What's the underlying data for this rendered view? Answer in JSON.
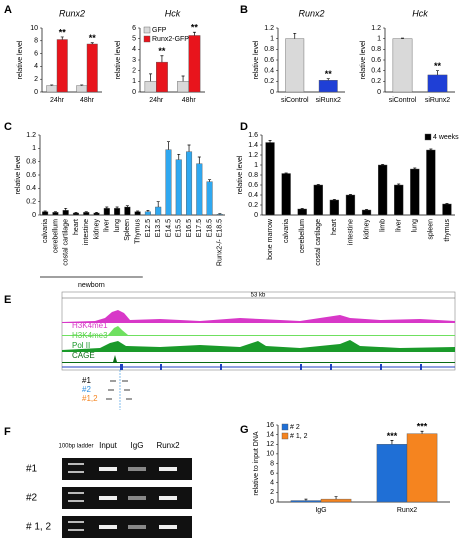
{
  "panel_labels": [
    "A",
    "B",
    "C",
    "D",
    "E",
    "F",
    "G"
  ],
  "chart_data": [
    {
      "type": "bar",
      "title": "Runx2",
      "ylabel": "relative level",
      "categories": [
        "24hr",
        "48hr"
      ],
      "series": [
        {
          "color": "#d9d9d9",
          "values": [
            1,
            1
          ],
          "errors": [
            0.1,
            0.1
          ]
        },
        {
          "color": "#e8141c",
          "values": [
            8.2,
            7.5
          ],
          "errors": [
            0.4,
            0.2
          ],
          "significance": [
            "**",
            "**"
          ]
        }
      ],
      "ylim": [
        0,
        10
      ],
      "yticks": [
        0,
        2,
        4,
        6,
        8,
        10
      ]
    },
    {
      "type": "bar",
      "title": "Hck",
      "ylabel": "relative level",
      "categories": [
        "24hr",
        "48hr"
      ],
      "series": [
        {
          "name": "GFP",
          "color": "#d9d9d9",
          "values": [
            1,
            1
          ],
          "errors": [
            0.7,
            0.5
          ]
        },
        {
          "name": "Runx2-GFP",
          "color": "#e8141c",
          "values": [
            2.8,
            5.3
          ],
          "errors": [
            0.6,
            0.3
          ],
          "significance": [
            "**",
            "**"
          ]
        }
      ],
      "ylim": [
        0,
        6
      ],
      "yticks": [
        0,
        1,
        2,
        3,
        4,
        5,
        6
      ],
      "legend": "upper left"
    },
    {
      "type": "bar",
      "title": "Runx2",
      "ylabel": "relative level",
      "categories": [
        "siControl",
        "siRunx2"
      ],
      "values": [
        1,
        0.22
      ],
      "errors": [
        0.1,
        0.03
      ],
      "colors": [
        "#d9d9d9",
        "#1f3fd6"
      ],
      "significance": [
        null,
        "**"
      ],
      "ylim": [
        0,
        1.2
      ],
      "yticks": [
        0,
        0.2,
        0.4,
        0.6,
        0.8,
        1,
        1.2
      ]
    },
    {
      "type": "bar",
      "title": "Hck",
      "ylabel": "relative level",
      "categories": [
        "siControl",
        "siRunx2"
      ],
      "values": [
        1,
        0.32
      ],
      "errors": [
        0.01,
        0.08
      ],
      "colors": [
        "#d9d9d9",
        "#1f3fd6"
      ],
      "significance": [
        null,
        "**"
      ],
      "ylim": [
        0,
        1.2
      ],
      "yticks": [
        0,
        0.2,
        0.4,
        0.6,
        0.8,
        1,
        1.2
      ]
    },
    {
      "type": "bar",
      "ylabel": "relative level",
      "group_label": "newborn",
      "categories": [
        "calvaria",
        "cerebellum",
        "costal cartilage",
        "heart",
        "intestine",
        "kidney",
        "liver",
        "lung",
        "Spleen",
        "Thymus",
        "E12.5",
        "E13.5",
        "E14.5",
        "E15.5",
        "E16.5",
        "E17.5",
        "E18.5",
        "Runx2-/- E18.5"
      ],
      "values": [
        0.05,
        0.04,
        0.07,
        0.03,
        0.04,
        0.03,
        0.1,
        0.1,
        0.12,
        0.05,
        0.05,
        0.12,
        0.98,
        0.83,
        0.95,
        0.77,
        0.5,
        0.01
      ],
      "errors": [
        0.01,
        0.01,
        0.03,
        0.01,
        0.01,
        0.01,
        0.02,
        0.02,
        0.02,
        0.01,
        0.02,
        0.08,
        0.12,
        0.08,
        0.1,
        0.1,
        0.03,
        0.01
      ],
      "colors": [
        "#000000",
        "#000000",
        "#000000",
        "#000000",
        "#000000",
        "#000000",
        "#000000",
        "#000000",
        "#000000",
        "#000000",
        "#2fa8f0",
        "#2fa8f0",
        "#2fa8f0",
        "#2fa8f0",
        "#2fa8f0",
        "#2fa8f0",
        "#2fa8f0",
        "#2fa8f0"
      ],
      "ylim": [
        0,
        1.2
      ],
      "yticks": [
        0,
        0.2,
        0.4,
        0.6,
        0.8,
        1,
        1.2
      ]
    },
    {
      "type": "bar",
      "ylabel": "relative level",
      "categories": [
        "bone marrow",
        "calvaria",
        "cerebellum",
        "costal cartilage",
        "heart",
        "intestine",
        "kidney",
        "limb",
        "liver",
        "lung",
        "spleen",
        "thymus"
      ],
      "series": [
        {
          "name": "4 weeks",
          "color": "#000000",
          "values": [
            1.45,
            0.83,
            0.12,
            0.6,
            0.3,
            0.4,
            0.1,
            1.0,
            0.6,
            0.92,
            1.3,
            0.22
          ],
          "errors": [
            0.04,
            0.01,
            0.01,
            0.01,
            0.01,
            0.01,
            0.01,
            0.01,
            0.02,
            0.02,
            0.02,
            0.01
          ]
        }
      ],
      "ylim": [
        0,
        1.6
      ],
      "yticks": [
        0,
        0.2,
        0.4,
        0.6,
        0.8,
        1,
        1.2,
        1.4,
        1.6
      ],
      "legend": "upper right"
    },
    {
      "type": "bar",
      "ylabel": "relative to input DNA",
      "categories": [
        "IgG",
        "Runx2"
      ],
      "series": [
        {
          "name": "# 2",
          "color": "#1f6fd6",
          "values": [
            0.3,
            12
          ],
          "errors": [
            0.3,
            0.8
          ],
          "significance": [
            null,
            "***"
          ]
        },
        {
          "name": "# 1, 2",
          "color": "#f5841f",
          "values": [
            0.6,
            14.2
          ],
          "errors": [
            0.5,
            0.5
          ],
          "significance": [
            null,
            "***"
          ]
        }
      ],
      "ylim": [
        0,
        16
      ],
      "yticks": [
        0,
        2,
        4,
        6,
        8,
        10,
        12,
        14,
        16
      ],
      "legend": "upper left"
    }
  ],
  "genome_browser": {
    "scale": "53 kb",
    "tracks": [
      "H3K4me1",
      "H3K4me3",
      "Pol II",
      "CAGE"
    ],
    "primers": [
      "#1",
      "#2",
      "#1,2"
    ]
  },
  "gel": {
    "lanes": [
      "100bp ladder",
      "Input",
      "IgG",
      "Runx2"
    ],
    "rows": [
      "#1",
      "#2",
      "# 1, 2"
    ]
  }
}
